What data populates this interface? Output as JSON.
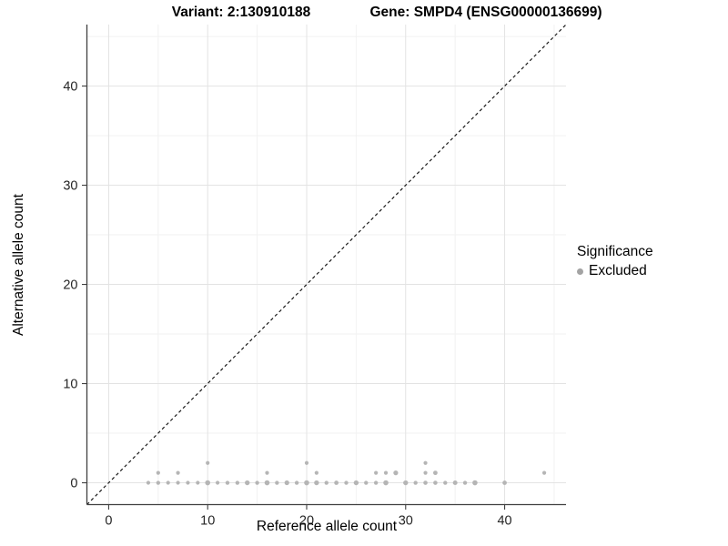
{
  "header": {
    "variant_title": "Variant: 2:130910188",
    "gene_title": "Gene: SMPD4 (ENSG00000136699)"
  },
  "chart_data": {
    "type": "scatter",
    "title_left": "Variant: 2:130910188",
    "title_right": "Gene: SMPD4 (ENSG00000136699)",
    "xlabel": "Reference allele count",
    "ylabel": "Alternative allele count",
    "xlim": [
      -2.2,
      46.2
    ],
    "ylim": [
      -2.2,
      46.2
    ],
    "x_ticks": [
      0,
      10,
      20,
      30,
      40
    ],
    "y_ticks": [
      0,
      10,
      20,
      30,
      40
    ],
    "x_minor_ticks": [
      5,
      15,
      25,
      35,
      45
    ],
    "y_minor_ticks": [
      5,
      15,
      25,
      35,
      45
    ],
    "grid": "major and minor, light gray, white panel",
    "identity_line": {
      "style": "dashed",
      "slope": 1,
      "intercept": 0,
      "from": -2.2,
      "to": 46.2,
      "color": "#1a1a1a"
    },
    "colors": {
      "point": "#b5b5b5",
      "legend_key": "#a3a3a3",
      "grid_major": "#e3e3e3",
      "grid_minor": "#f2f2f2",
      "axis_line": "#404040"
    },
    "series": [
      {
        "name": "Excluded",
        "color": "#b5b5b5",
        "points": [
          {
            "x": 4,
            "y": 0,
            "r": 2.1
          },
          {
            "x": 5,
            "y": 0,
            "r": 2.2
          },
          {
            "x": 6,
            "y": 0,
            "r": 2.1
          },
          {
            "x": 7,
            "y": 0,
            "r": 2.1
          },
          {
            "x": 8,
            "y": 0,
            "r": 2.1
          },
          {
            "x": 9,
            "y": 0,
            "r": 2.1
          },
          {
            "x": 10,
            "y": 0,
            "r": 2.8
          },
          {
            "x": 11,
            "y": 0,
            "r": 2.1
          },
          {
            "x": 12,
            "y": 0,
            "r": 2.2
          },
          {
            "x": 13,
            "y": 0,
            "r": 2.2
          },
          {
            "x": 14,
            "y": 0,
            "r": 2.7
          },
          {
            "x": 15,
            "y": 0,
            "r": 2.2
          },
          {
            "x": 16,
            "y": 0,
            "r": 2.8
          },
          {
            "x": 17,
            "y": 0,
            "r": 2.2
          },
          {
            "x": 18,
            "y": 0,
            "r": 2.6
          },
          {
            "x": 19,
            "y": 0,
            "r": 2.2
          },
          {
            "x": 20,
            "y": 0,
            "r": 2.8
          },
          {
            "x": 21,
            "y": 0,
            "r": 2.7
          },
          {
            "x": 22,
            "y": 0,
            "r": 2.2
          },
          {
            "x": 23,
            "y": 0,
            "r": 2.4
          },
          {
            "x": 24,
            "y": 0,
            "r": 2.2
          },
          {
            "x": 25,
            "y": 0,
            "r": 2.7
          },
          {
            "x": 26,
            "y": 0,
            "r": 2.2
          },
          {
            "x": 27,
            "y": 0,
            "r": 2.2
          },
          {
            "x": 28,
            "y": 0,
            "r": 2.8
          },
          {
            "x": 30,
            "y": 0,
            "r": 2.7
          },
          {
            "x": 31,
            "y": 0,
            "r": 2.2
          },
          {
            "x": 32,
            "y": 0,
            "r": 2.3
          },
          {
            "x": 33,
            "y": 0,
            "r": 2.3
          },
          {
            "x": 34,
            "y": 0,
            "r": 2.2
          },
          {
            "x": 35,
            "y": 0,
            "r": 2.5
          },
          {
            "x": 36,
            "y": 0,
            "r": 2.2
          },
          {
            "x": 37,
            "y": 0,
            "r": 2.8
          },
          {
            "x": 40,
            "y": 0,
            "r": 2.4
          },
          {
            "x": 5,
            "y": 1,
            "r": 2.1
          },
          {
            "x": 7,
            "y": 1,
            "r": 2.1
          },
          {
            "x": 16,
            "y": 1,
            "r": 2.1
          },
          {
            "x": 21,
            "y": 1,
            "r": 2.1
          },
          {
            "x": 27,
            "y": 1,
            "r": 2.1
          },
          {
            "x": 28,
            "y": 1,
            "r": 2.1
          },
          {
            "x": 29,
            "y": 1,
            "r": 2.6
          },
          {
            "x": 32,
            "y": 1,
            "r": 2.1
          },
          {
            "x": 33,
            "y": 1,
            "r": 2.4
          },
          {
            "x": 44,
            "y": 1,
            "r": 2.1
          },
          {
            "x": 10,
            "y": 2,
            "r": 2.1
          },
          {
            "x": 20,
            "y": 2,
            "r": 2.1
          },
          {
            "x": 32,
            "y": 2,
            "r": 2.1
          }
        ]
      }
    ],
    "legend": {
      "title": "Significance",
      "position": "right",
      "items": [
        {
          "label": "Excluded",
          "color": "#a3a3a3"
        }
      ]
    }
  }
}
